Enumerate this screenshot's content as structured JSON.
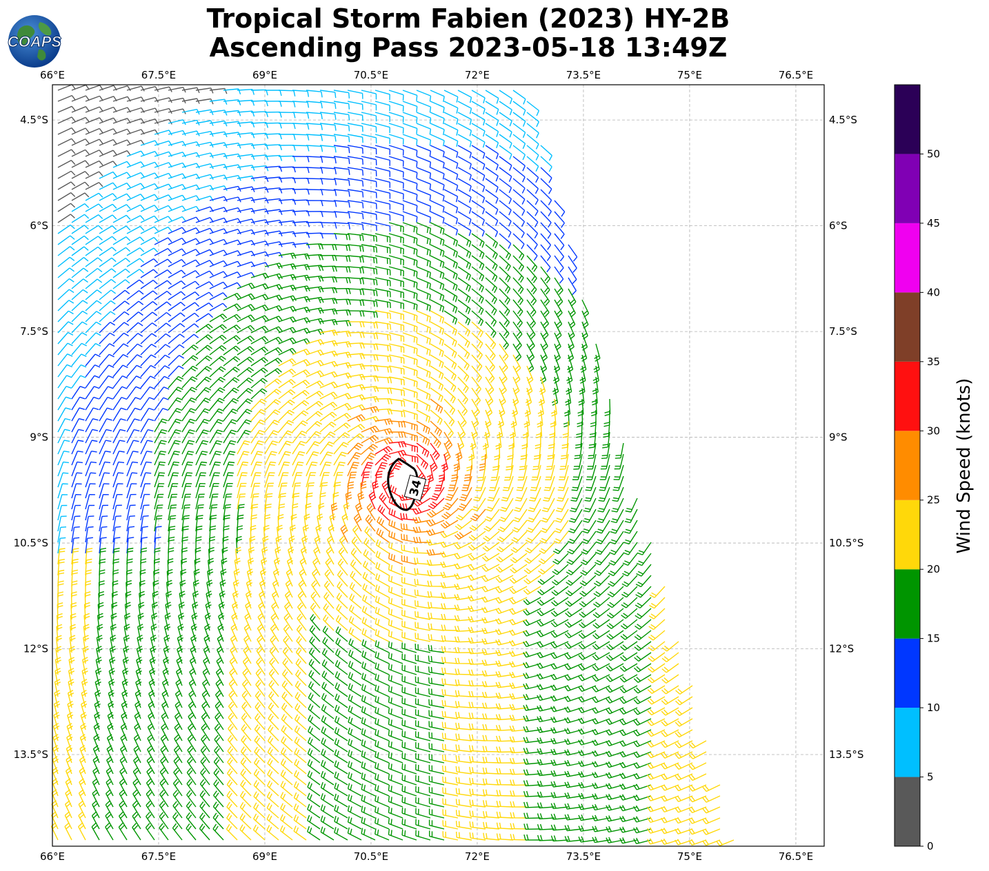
{
  "title": {
    "line1": "Tropical Storm Fabien (2023) HY-2B",
    "line2": "Ascending Pass 2023-05-18 13:49Z"
  },
  "logo": {
    "text": "COAPS"
  },
  "map": {
    "lon_labels": [
      "66°E",
      "67.5°E",
      "69°E",
      "70.5°E",
      "72°E",
      "73.5°E",
      "75°E",
      "76.5°E"
    ],
    "lon_values": [
      66,
      67.5,
      69,
      70.5,
      72,
      73.5,
      75,
      76.5
    ],
    "lat_labels": [
      "4.5°S",
      "6°S",
      "7.5°S",
      "9°S",
      "10.5°S",
      "12°S",
      "13.5°S"
    ],
    "lat_values": [
      -4.5,
      -6,
      -7.5,
      -9,
      -10.5,
      -12,
      -13.5
    ],
    "extent": {
      "lon_min": 66,
      "lon_max": 76.9,
      "lat_max": -4.0,
      "lat_min": -14.8
    },
    "contour_label": "34",
    "storm_center": {
      "lon": 71.0,
      "lat": -9.6
    },
    "gridlines": true
  },
  "colorbar": {
    "label": "Wind Speed (knots)",
    "ticks": [
      "0",
      "5",
      "10",
      "15",
      "20",
      "25",
      "30",
      "35",
      "40",
      "45",
      "50"
    ],
    "bins": [
      {
        "from": 0,
        "to": 5,
        "color": "#595959"
      },
      {
        "from": 5,
        "to": 10,
        "color": "#00bfff"
      },
      {
        "from": 10,
        "to": 15,
        "color": "#0037ff"
      },
      {
        "from": 15,
        "to": 20,
        "color": "#009500"
      },
      {
        "from": 20,
        "to": 25,
        "color": "#ffd80a"
      },
      {
        "from": 25,
        "to": 30,
        "color": "#ff8c00"
      },
      {
        "from": 30,
        "to": 35,
        "color": "#ff1010"
      },
      {
        "from": 35,
        "to": 40,
        "color": "#7f3f28"
      },
      {
        "from": 40,
        "to": 45,
        "color": "#f000f0"
      },
      {
        "from": 45,
        "to": 50,
        "color": "#8000b4"
      },
      {
        "from": 50,
        "to": 55,
        "color": "#2b0057"
      }
    ]
  }
}
